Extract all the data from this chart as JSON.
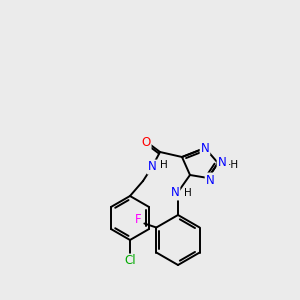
{
  "background_color": "#ebebeb",
  "bond_color": "#000000",
  "atom_colors": {
    "N": "#0000ff",
    "O": "#ff0000",
    "Cl": "#00aa00",
    "F": "#ff00ff",
    "H": "#000000",
    "C": "#000000"
  },
  "figsize": [
    3.0,
    3.0
  ],
  "dpi": 100,
  "lw": 1.4,
  "fontsize": 8.5
}
